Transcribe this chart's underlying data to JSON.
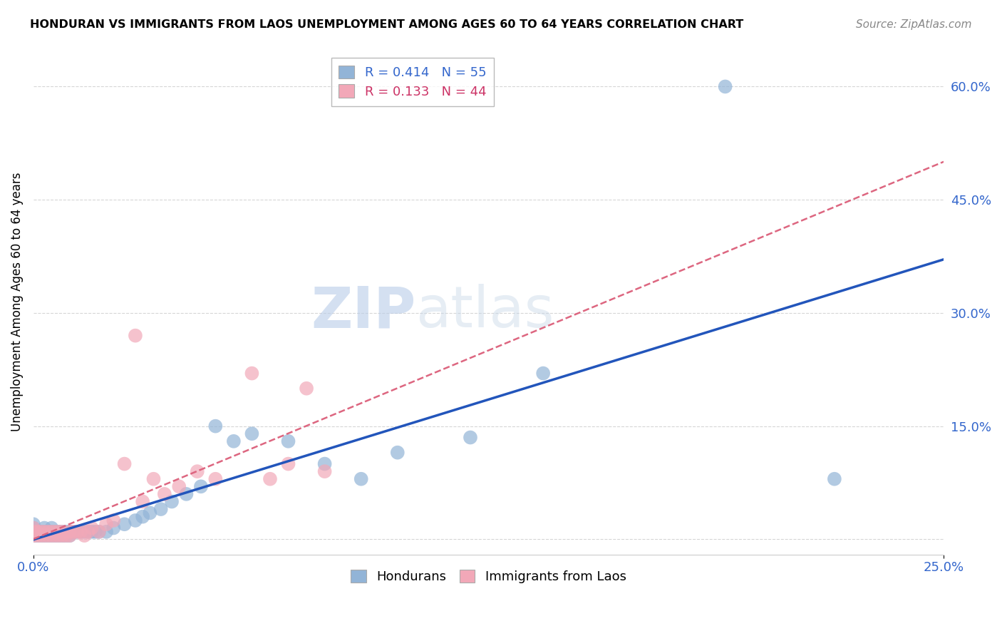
{
  "title": "HONDURAN VS IMMIGRANTS FROM LAOS UNEMPLOYMENT AMONG AGES 60 TO 64 YEARS CORRELATION CHART",
  "source": "Source: ZipAtlas.com",
  "ylabel": "Unemployment Among Ages 60 to 64 years",
  "yticks": [
    0.0,
    0.15,
    0.3,
    0.45,
    0.6
  ],
  "ytick_labels": [
    "",
    "15.0%",
    "30.0%",
    "45.0%",
    "60.0%"
  ],
  "xlim": [
    0.0,
    0.25
  ],
  "ylim": [
    -0.02,
    0.65
  ],
  "legend_blue_label": "R = 0.414   N = 55",
  "legend_pink_label": "R = 0.133   N = 44",
  "legend_bottom_blue": "Hondurans",
  "legend_bottom_pink": "Immigrants from Laos",
  "blue_color": "#92b4d7",
  "pink_color": "#f2a8b8",
  "line_blue": "#2255bb",
  "line_pink": "#dd6680",
  "watermark_zip": "ZIP",
  "watermark_atlas": "atlas",
  "hondurans_x": [
    0.0,
    0.0,
    0.0,
    0.0,
    0.001,
    0.001,
    0.002,
    0.002,
    0.003,
    0.003,
    0.003,
    0.004,
    0.004,
    0.005,
    0.005,
    0.005,
    0.006,
    0.006,
    0.007,
    0.007,
    0.008,
    0.008,
    0.009,
    0.009,
    0.01,
    0.01,
    0.011,
    0.012,
    0.013,
    0.014,
    0.015,
    0.016,
    0.017,
    0.018,
    0.02,
    0.022,
    0.025,
    0.028,
    0.03,
    0.032,
    0.035,
    0.038,
    0.042,
    0.046,
    0.05,
    0.055,
    0.06,
    0.07,
    0.08,
    0.09,
    0.1,
    0.12,
    0.14,
    0.19,
    0.22
  ],
  "hondurans_y": [
    0.005,
    0.01,
    0.015,
    0.02,
    0.005,
    0.01,
    0.005,
    0.01,
    0.005,
    0.01,
    0.015,
    0.005,
    0.01,
    0.005,
    0.01,
    0.015,
    0.005,
    0.01,
    0.005,
    0.01,
    0.005,
    0.01,
    0.005,
    0.01,
    0.005,
    0.01,
    0.01,
    0.01,
    0.01,
    0.01,
    0.01,
    0.01,
    0.01,
    0.01,
    0.01,
    0.015,
    0.02,
    0.025,
    0.03,
    0.035,
    0.04,
    0.05,
    0.06,
    0.07,
    0.15,
    0.13,
    0.14,
    0.13,
    0.1,
    0.08,
    0.115,
    0.135,
    0.22,
    0.6,
    0.08
  ],
  "laos_x": [
    0.0,
    0.0,
    0.0,
    0.001,
    0.001,
    0.002,
    0.002,
    0.003,
    0.003,
    0.004,
    0.004,
    0.005,
    0.005,
    0.006,
    0.006,
    0.007,
    0.007,
    0.008,
    0.008,
    0.009,
    0.01,
    0.01,
    0.011,
    0.012,
    0.013,
    0.014,
    0.015,
    0.016,
    0.018,
    0.02,
    0.022,
    0.025,
    0.028,
    0.03,
    0.033,
    0.036,
    0.04,
    0.045,
    0.05,
    0.06,
    0.065,
    0.07,
    0.075,
    0.08
  ],
  "laos_y": [
    0.005,
    0.01,
    0.015,
    0.005,
    0.01,
    0.005,
    0.01,
    0.005,
    0.01,
    0.005,
    0.01,
    0.005,
    0.01,
    0.005,
    0.01,
    0.005,
    0.01,
    0.005,
    0.01,
    0.005,
    0.005,
    0.01,
    0.01,
    0.01,
    0.01,
    0.005,
    0.01,
    0.015,
    0.01,
    0.02,
    0.025,
    0.1,
    0.27,
    0.05,
    0.08,
    0.06,
    0.07,
    0.09,
    0.08,
    0.22,
    0.08,
    0.1,
    0.2,
    0.09
  ]
}
